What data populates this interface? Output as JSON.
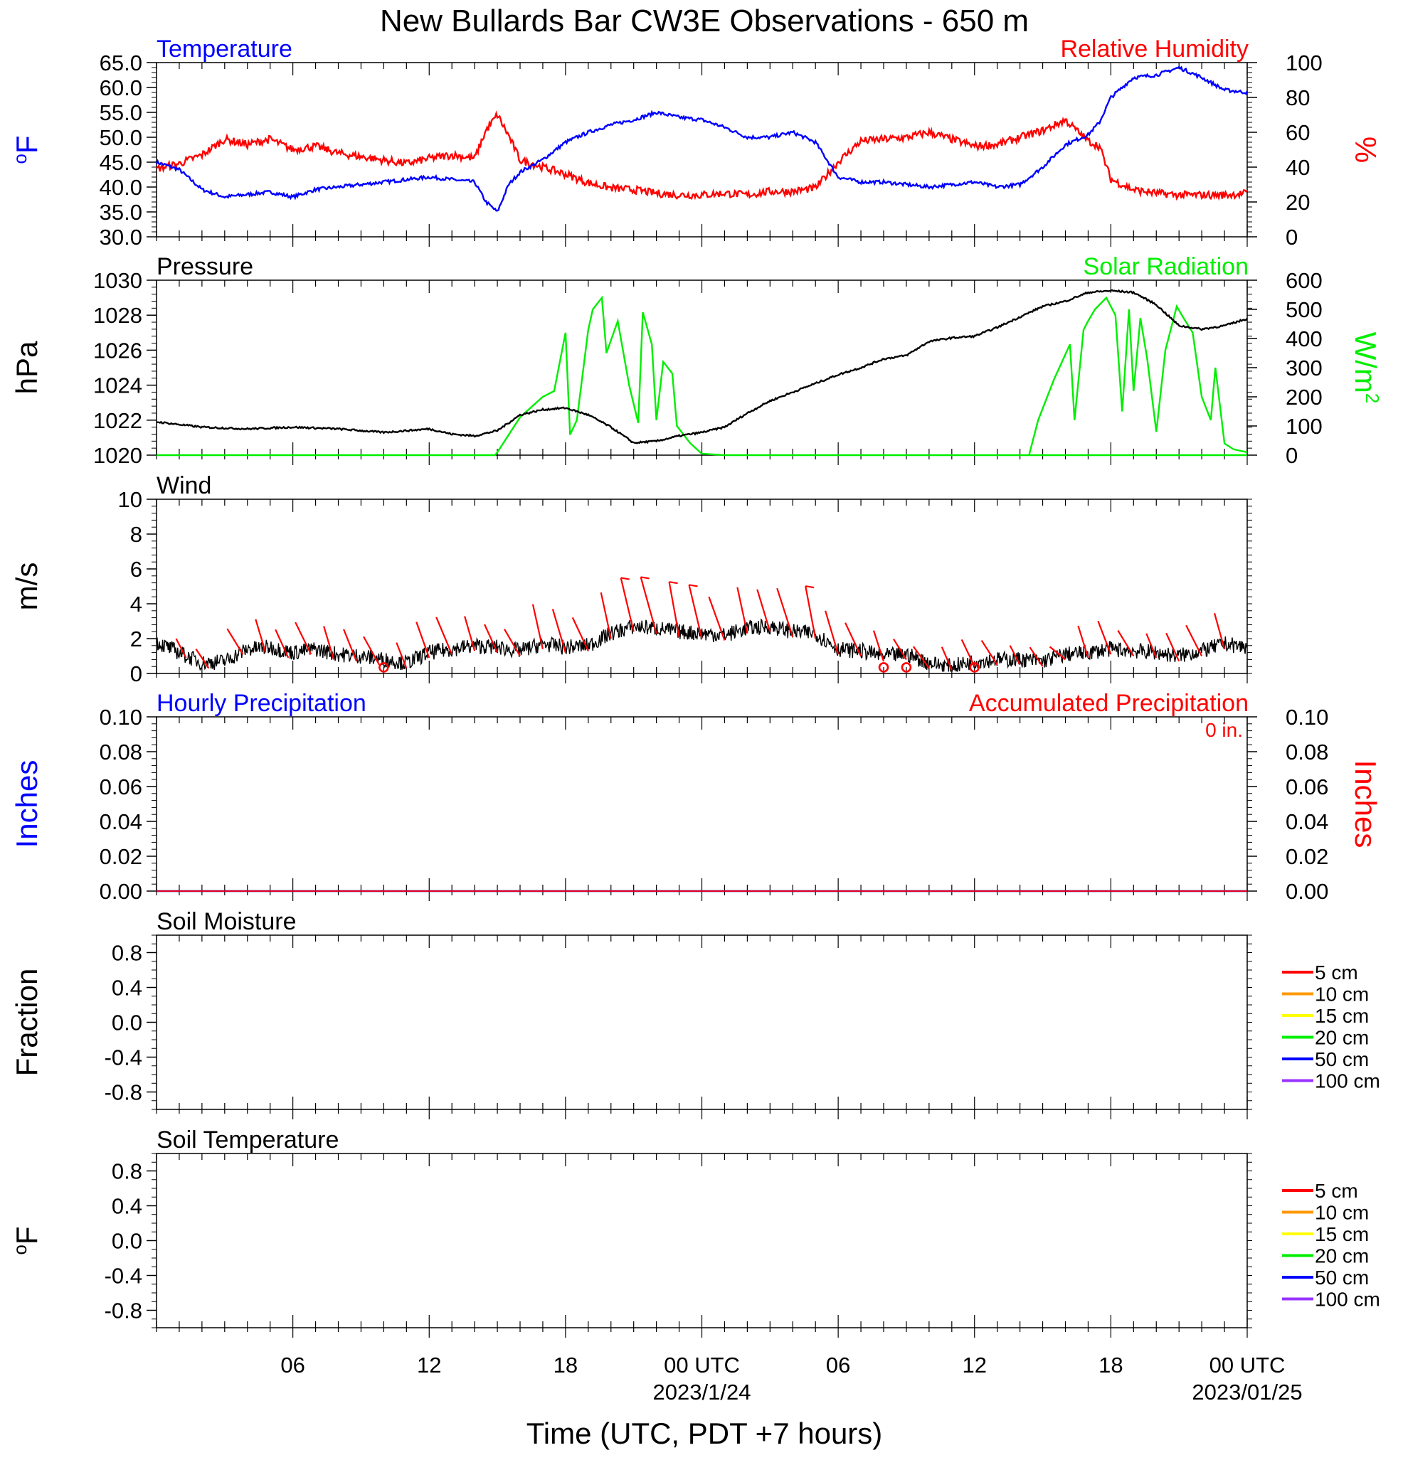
{
  "title": "New Bullards Bar CW3E Observations - 650 m",
  "xlabel": "Time (UTC, PDT +7 hours)",
  "x_tick_labels": [
    "06",
    "12",
    "18",
    "00 UTC",
    "06",
    "12",
    "18",
    "00 UTC"
  ],
  "x_date_labels": [
    "2023/1/24",
    "2023/01/25"
  ],
  "colors": {
    "blue": "#0000ff",
    "red": "#ff0000",
    "green": "#00ee00",
    "black": "#000000"
  },
  "chart_data": [
    {
      "type": "line",
      "title_left": "Temperature",
      "title_right": "Relative Humidity",
      "ylabel_left": "oF",
      "ylabel_right": "%",
      "ylim_left": [
        30,
        65
      ],
      "ylim_right": [
        0,
        100
      ],
      "yticks_left": [
        "65.0",
        "60.0",
        "55.0",
        "50.0",
        "45.0",
        "40.0",
        "35.0",
        "30.0"
      ],
      "yticks_right": [
        "100",
        "80",
        "60",
        "40",
        "20",
        "0"
      ],
      "x_hours": [
        0,
        1,
        2,
        3,
        4,
        5,
        6,
        7,
        8,
        9,
        10,
        11,
        12,
        13,
        14,
        14.5,
        15,
        15.5,
        16,
        17,
        18,
        19,
        20,
        21,
        22,
        23,
        24,
        25,
        26,
        27,
        28,
        29,
        30,
        31,
        32,
        33,
        34,
        35,
        36,
        37,
        38,
        39,
        40,
        41,
        41.5,
        42,
        43,
        44,
        45,
        46,
        47,
        48
      ],
      "series": [
        {
          "name": "Temperature",
          "values": [
            45.0,
            43.5,
            39.5,
            38.0,
            38.5,
            39.0,
            38.0,
            39.5,
            40.0,
            40.5,
            41.0,
            41.5,
            42.0,
            41.5,
            41.0,
            37.0,
            35.0,
            40.5,
            43.0,
            45.5,
            49.0,
            51.0,
            52.5,
            53.5,
            55.0,
            54.0,
            53.5,
            52.0,
            50.0,
            50.0,
            51.0,
            49.0,
            42.0,
            41.0,
            41.0,
            40.5,
            40.0,
            40.5,
            41.0,
            40.0,
            40.5,
            44.0,
            48.5,
            50.5,
            53.0,
            58.0,
            62.0,
            62.5,
            64.0,
            62.0,
            59.5,
            59.0
          ]
        },
        {
          "name": "Relative Humidity",
          "values": [
            39,
            42,
            47,
            56,
            53,
            56,
            50,
            52,
            48,
            46,
            44,
            42,
            45,
            47,
            45,
            61,
            70,
            58,
            44,
            40,
            36,
            31,
            28,
            27,
            25,
            24,
            24,
            25,
            24,
            26,
            26,
            28,
            43,
            55,
            56,
            57,
            60,
            56,
            52,
            53,
            57,
            61,
            67,
            55,
            52,
            33,
            27,
            25,
            24,
            24,
            24,
            25
          ]
        }
      ]
    },
    {
      "type": "line",
      "title_left": "Pressure",
      "title_right": "Solar Radiation",
      "ylabel_left": "hPa",
      "ylabel_right": "W/m2",
      "ylim_left": [
        1020,
        1030
      ],
      "ylim_right": [
        0,
        600
      ],
      "yticks_left": [
        "1030",
        "1028",
        "1026",
        "1024",
        "1022",
        "1020"
      ],
      "yticks_right": [
        "600",
        "500",
        "400",
        "300",
        "200",
        "100",
        "0"
      ],
      "pressure_hours": [
        0,
        2,
        4,
        6,
        8,
        10,
        12,
        13,
        14,
        15,
        16,
        17,
        18,
        19,
        20,
        21,
        22,
        23,
        24,
        25,
        26,
        27,
        28,
        29,
        30,
        31,
        32,
        33,
        34,
        35,
        36,
        37,
        38,
        39,
        40,
        41,
        42,
        43,
        44,
        45,
        46,
        47,
        48
      ],
      "pressure_values": [
        1021.9,
        1021.6,
        1021.5,
        1021.6,
        1021.5,
        1021.3,
        1021.5,
        1021.2,
        1021.1,
        1021.4,
        1022.3,
        1022.6,
        1022.7,
        1022.3,
        1021.6,
        1020.7,
        1020.8,
        1021.1,
        1021.3,
        1021.6,
        1022.4,
        1023.1,
        1023.6,
        1024.1,
        1024.6,
        1025.0,
        1025.5,
        1025.7,
        1026.5,
        1026.7,
        1026.8,
        1027.3,
        1027.9,
        1028.5,
        1028.8,
        1029.3,
        1029.4,
        1029.3,
        1028.6,
        1027.4,
        1027.2,
        1027.4,
        1027.8
      ],
      "solar_hours": [
        0,
        14.9,
        15.0,
        16.0,
        17.0,
        17.5,
        18.0,
        18.2,
        18.5,
        19.0,
        19.2,
        19.6,
        19.8,
        20.3,
        20.8,
        21.2,
        21.4,
        21.8,
        22.0,
        22.3,
        22.7,
        22.9,
        23.5,
        24.0,
        25.0,
        48
      ],
      "solar_values": [
        0,
        0,
        10,
        130,
        200,
        220,
        420,
        70,
        120,
        430,
        500,
        540,
        350,
        460,
        240,
        110,
        490,
        380,
        120,
        320,
        280,
        100,
        40,
        5,
        0,
        0
      ],
      "solar_hours_day2": [
        0,
        38.4,
        38.8,
        39.5,
        40.2,
        40.4,
        40.8,
        41.0,
        41.3,
        41.8,
        42.2,
        42.5,
        42.8,
        43.0,
        43.3,
        43.6,
        44.0,
        44.4,
        44.9,
        45.2,
        45.6,
        46.0,
        46.4,
        46.6,
        47.0,
        47.4,
        48.0
      ],
      "solar_values_day2": [
        0,
        0,
        120,
        260,
        380,
        120,
        430,
        460,
        500,
        540,
        480,
        150,
        500,
        220,
        470,
        330,
        80,
        360,
        510,
        470,
        420,
        200,
        120,
        300,
        40,
        20,
        10
      ],
      "series": [
        {
          "name": "Pressure",
          "values": [
            1021.9,
            1021.6,
            1021.5,
            1021.3,
            1021.1,
            1022.7,
            1020.7,
            1021.3,
            1023.6,
            1025.5,
            1026.8,
            1028.5,
            1029.4,
            1027.2,
            1027.8
          ]
        },
        {
          "name": "Solar Radiation",
          "values": [
            0,
            0,
            540,
            490,
            0,
            0,
            540,
            510,
            10
          ]
        }
      ]
    },
    {
      "type": "line",
      "title_left": "Wind",
      "ylabel_left": "m/s",
      "ylim_left": [
        0,
        10
      ],
      "yticks_left": [
        "10",
        "8",
        "6",
        "4",
        "2",
        "0"
      ],
      "x_hours": [
        0,
        1,
        2,
        3,
        4,
        5,
        6,
        7,
        8,
        9,
        10,
        11,
        12,
        13,
        14,
        15,
        16,
        17,
        18,
        19,
        20,
        21,
        22,
        23,
        24,
        25,
        26,
        27,
        28,
        29,
        30,
        31,
        32,
        33,
        34,
        35,
        36,
        37,
        38,
        39,
        40,
        41,
        42,
        43,
        44,
        45,
        46,
        47,
        48
      ],
      "speed": [
        1.8,
        1.2,
        0.6,
        0.7,
        1.4,
        1.5,
        1.2,
        1.4,
        1.1,
        1.0,
        0.8,
        0.6,
        1.2,
        1.4,
        1.6,
        1.5,
        1.3,
        1.7,
        1.5,
        1.6,
        2.3,
        2.7,
        2.6,
        2.4,
        2.3,
        2.2,
        2.6,
        2.7,
        2.4,
        2.3,
        1.4,
        1.3,
        1.0,
        1.1,
        0.6,
        0.4,
        0.7,
        0.8,
        0.8,
        0.7,
        1.1,
        1.2,
        1.4,
        1.3,
        1.2,
        1.0,
        1.3,
        1.7,
        1.5
      ],
      "barb_hours": [
        1.3,
        2.3,
        3.8,
        4.8,
        5.8,
        6.8,
        7.8,
        8.8,
        9.8,
        11.0,
        12.0,
        13.0,
        14.0,
        15.0,
        16.0,
        17.0,
        18.0,
        19.0,
        20.0,
        21.0,
        22.0,
        23.0,
        24.0,
        25.0,
        26.0,
        27.0,
        28.0,
        29.0,
        30.0,
        31.0,
        32.0,
        33.0,
        34.0,
        35.0,
        36.0,
        37.0,
        38.0,
        39.0,
        40.0,
        41.0,
        42.0,
        43.0,
        44.0,
        45.0,
        46.0,
        47.0
      ],
      "barb_speed": [
        1.5,
        1.5,
        2.0,
        2.6,
        2.2,
        2.5,
        2.6,
        2.5,
        2.2,
        2.0,
        2.8,
        2.9,
        2.7,
        2.2,
        2.1,
        3.5,
        3.4,
        2.6,
        3.6,
        4.2,
        4.4,
        4.3,
        4.2,
        3.4,
        3.6,
        3.3,
        3.8,
        4.1,
        3.4,
        2.6,
        2.4,
        1.6,
        1.7,
        1.8,
        2.1,
        1.9,
        1.5,
        1.5,
        1.0,
        2.5,
        2.6,
        2.0,
        1.9,
        2.2,
        2.4,
        2.8
      ],
      "calm_hours": [
        10.0,
        32.0,
        33.0,
        36.0
      ],
      "series": [
        {
          "name": "Wind speed",
          "values": [
            1.8,
            0.6,
            1.5,
            1.0,
            0.6,
            1.6,
            1.6,
            2.7,
            2.3,
            2.7,
            1.3,
            0.4,
            0.8,
            1.4,
            1.3,
            1.5
          ]
        }
      ]
    },
    {
      "type": "line",
      "title_left": "Hourly Precipitation",
      "title_right": "Accumulated Precipitation",
      "annotation": "0 in.",
      "ylabel_left": "Inches",
      "ylabel_right": "Inches",
      "ylim_left": [
        0,
        0.1
      ],
      "ylim_right": [
        0,
        0.1
      ],
      "yticks_left": [
        "0.10",
        "0.08",
        "0.06",
        "0.04",
        "0.02",
        "0.00"
      ],
      "yticks_right": [
        "0.10",
        "0.08",
        "0.06",
        "0.04",
        "0.02",
        "0.00"
      ],
      "x_hours": [
        0,
        48
      ],
      "series": [
        {
          "name": "Hourly Precipitation",
          "values": [
            0,
            0
          ]
        },
        {
          "name": "Accumulated Precipitation",
          "values": [
            0,
            0
          ]
        }
      ]
    },
    {
      "type": "line",
      "title_left": "Soil Moisture",
      "ylabel_left": "Fraction",
      "ylim_left": [
        -1,
        1
      ],
      "yticks_left": [
        "0.8",
        "0.4",
        "0.0",
        "-0.4",
        "-0.8"
      ],
      "legend": [
        "5 cm",
        "10 cm",
        "15 cm",
        "20 cm",
        "50 cm",
        "100 cm"
      ],
      "legend_colors": [
        "#ff0000",
        "#ff9900",
        "#ffff00",
        "#00ee00",
        "#0000ff",
        "#9933ff"
      ],
      "series": []
    },
    {
      "type": "line",
      "title_left": "Soil Temperature",
      "ylabel_left": "oF",
      "ylim_left": [
        -1,
        1
      ],
      "yticks_left": [
        "0.8",
        "0.4",
        "0.0",
        "-0.4",
        "-0.8"
      ],
      "legend": [
        "5 cm",
        "10 cm",
        "15 cm",
        "20 cm",
        "50 cm",
        "100 cm"
      ],
      "legend_colors": [
        "#ff0000",
        "#ff9900",
        "#ffff00",
        "#00ee00",
        "#0000ff",
        "#9933ff"
      ],
      "series": []
    }
  ]
}
